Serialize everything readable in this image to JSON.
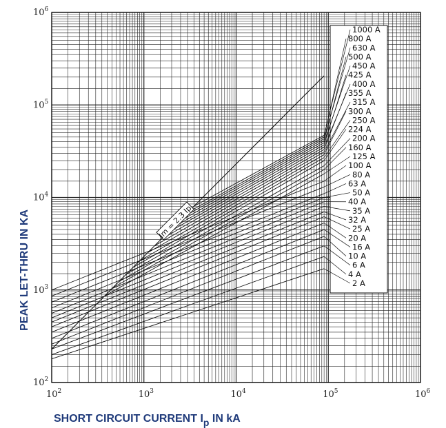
{
  "chart_data": {
    "type": "line",
    "x_scale": "log",
    "y_scale": "log",
    "xlim": [
      100,
      1000000
    ],
    "ylim": [
      100,
      1000000
    ],
    "xlabel_main": "SHORT CIRCUIT CURRENT I",
    "xlabel_sub": "p",
    "xlabel_tail": " IN kA",
    "ylabel": "PEAK LET-THRU IN KA",
    "x_ticks": [
      {
        "value": 100,
        "base": "10",
        "exp": "2"
      },
      {
        "value": 1000,
        "base": "10",
        "exp": "3"
      },
      {
        "value": 10000,
        "base": "10",
        "exp": "4"
      },
      {
        "value": 100000,
        "base": "10",
        "exp": "5"
      },
      {
        "value": 1000000,
        "base": "10",
        "exp": "6"
      }
    ],
    "y_ticks": [
      {
        "value": 100,
        "base": "10",
        "exp": "2"
      },
      {
        "value": 1000,
        "base": "10",
        "exp": "3"
      },
      {
        "value": 10000,
        "base": "10",
        "exp": "4"
      },
      {
        "value": 100000,
        "base": "10",
        "exp": "5"
      },
      {
        "value": 1000000,
        "base": "10",
        "exp": "6"
      }
    ],
    "grid": true,
    "reference_line": {
      "label": "Im = 2.3 Ip",
      "x": [
        100,
        90000
      ],
      "y": [
        230,
        207000
      ]
    },
    "series": [
      {
        "name": "1000 A",
        "x": [
          3500,
          90000
        ],
        "y": [
          8050,
          47000
        ]
      },
      {
        "name": "800 A",
        "x": [
          3000,
          90000
        ],
        "y": [
          6900,
          45000
        ]
      },
      {
        "name": "630 A",
        "x": [
          2700,
          90000
        ],
        "y": [
          6200,
          43000
        ]
      },
      {
        "name": "500 A",
        "x": [
          2400,
          90000
        ],
        "y": [
          5500,
          41000
        ]
      },
      {
        "name": "450 A",
        "x": [
          2100,
          90000
        ],
        "y": [
          4800,
          39000
        ]
      },
      {
        "name": "425 A",
        "x": [
          1800,
          90000
        ],
        "y": [
          4150,
          37000
        ]
      },
      {
        "name": "400 A",
        "x": [
          1550,
          90000
        ],
        "y": [
          3560,
          35000
        ]
      },
      {
        "name": "355 A",
        "x": [
          1300,
          90000
        ],
        "y": [
          3000,
          33000
        ]
      },
      {
        "name": "315 A",
        "x": [
          1100,
          90000
        ],
        "y": [
          2530,
          31000
        ]
      },
      {
        "name": "300 A",
        "x": [
          900,
          90000
        ],
        "y": [
          2070,
          29000
        ]
      },
      {
        "name": "250 A",
        "x": [
          760,
          90000
        ],
        "y": [
          1750,
          27000
        ]
      },
      {
        "name": "224 A",
        "x": [
          640,
          90000
        ],
        "y": [
          1470,
          25000
        ]
      },
      {
        "name": "200 A",
        "x": [
          540,
          90000
        ],
        "y": [
          1240,
          22000
        ]
      },
      {
        "name": "160 A",
        "x": [
          460,
          90000
        ],
        "y": [
          1060,
          20000
        ]
      },
      {
        "name": "125 A",
        "x": [
          380,
          90000
        ],
        "y": [
          870,
          18000
        ]
      },
      {
        "name": "100 A",
        "x": [
          100,
          90000
        ],
        "y": [
          1000,
          15000
        ]
      },
      {
        "name": "80 A",
        "x": [
          100,
          90000
        ],
        "y": [
          860,
          13000
        ]
      },
      {
        "name": "63 A",
        "x": [
          100,
          90000
        ],
        "y": [
          740,
          11000
        ]
      },
      {
        "name": "50 A",
        "x": [
          100,
          90000
        ],
        "y": [
          640,
          10000
        ]
      },
      {
        "name": "40 A",
        "x": [
          100,
          90000
        ],
        "y": [
          560,
          9000
        ]
      },
      {
        "name": "35 A",
        "x": [
          100,
          90000
        ],
        "y": [
          500,
          8000
        ]
      },
      {
        "name": "32 A",
        "x": [
          100,
          90000
        ],
        "y": [
          450,
          7000
        ]
      },
      {
        "name": "25 A",
        "x": [
          100,
          90000
        ],
        "y": [
          400,
          6200
        ]
      },
      {
        "name": "20 A",
        "x": [
          100,
          90000
        ],
        "y": [
          350,
          5300
        ]
      },
      {
        "name": "16 A",
        "x": [
          100,
          90000
        ],
        "y": [
          300,
          4500
        ]
      },
      {
        "name": "10 A",
        "x": [
          100,
          90000
        ],
        "y": [
          260,
          3800
        ]
      },
      {
        "name": "6 A",
        "x": [
          100,
          90000
        ],
        "y": [
          230,
          3000
        ]
      },
      {
        "name": "4 A",
        "x": [
          100,
          90000
        ],
        "y": [
          200,
          2300
        ]
      },
      {
        "name": "2 A",
        "x": [
          100,
          90000
        ],
        "y": [
          180,
          1700
        ]
      }
    ],
    "colors": {
      "axis_title": "#1f3a7a",
      "line": "#111111",
      "grid": "#222222"
    }
  }
}
